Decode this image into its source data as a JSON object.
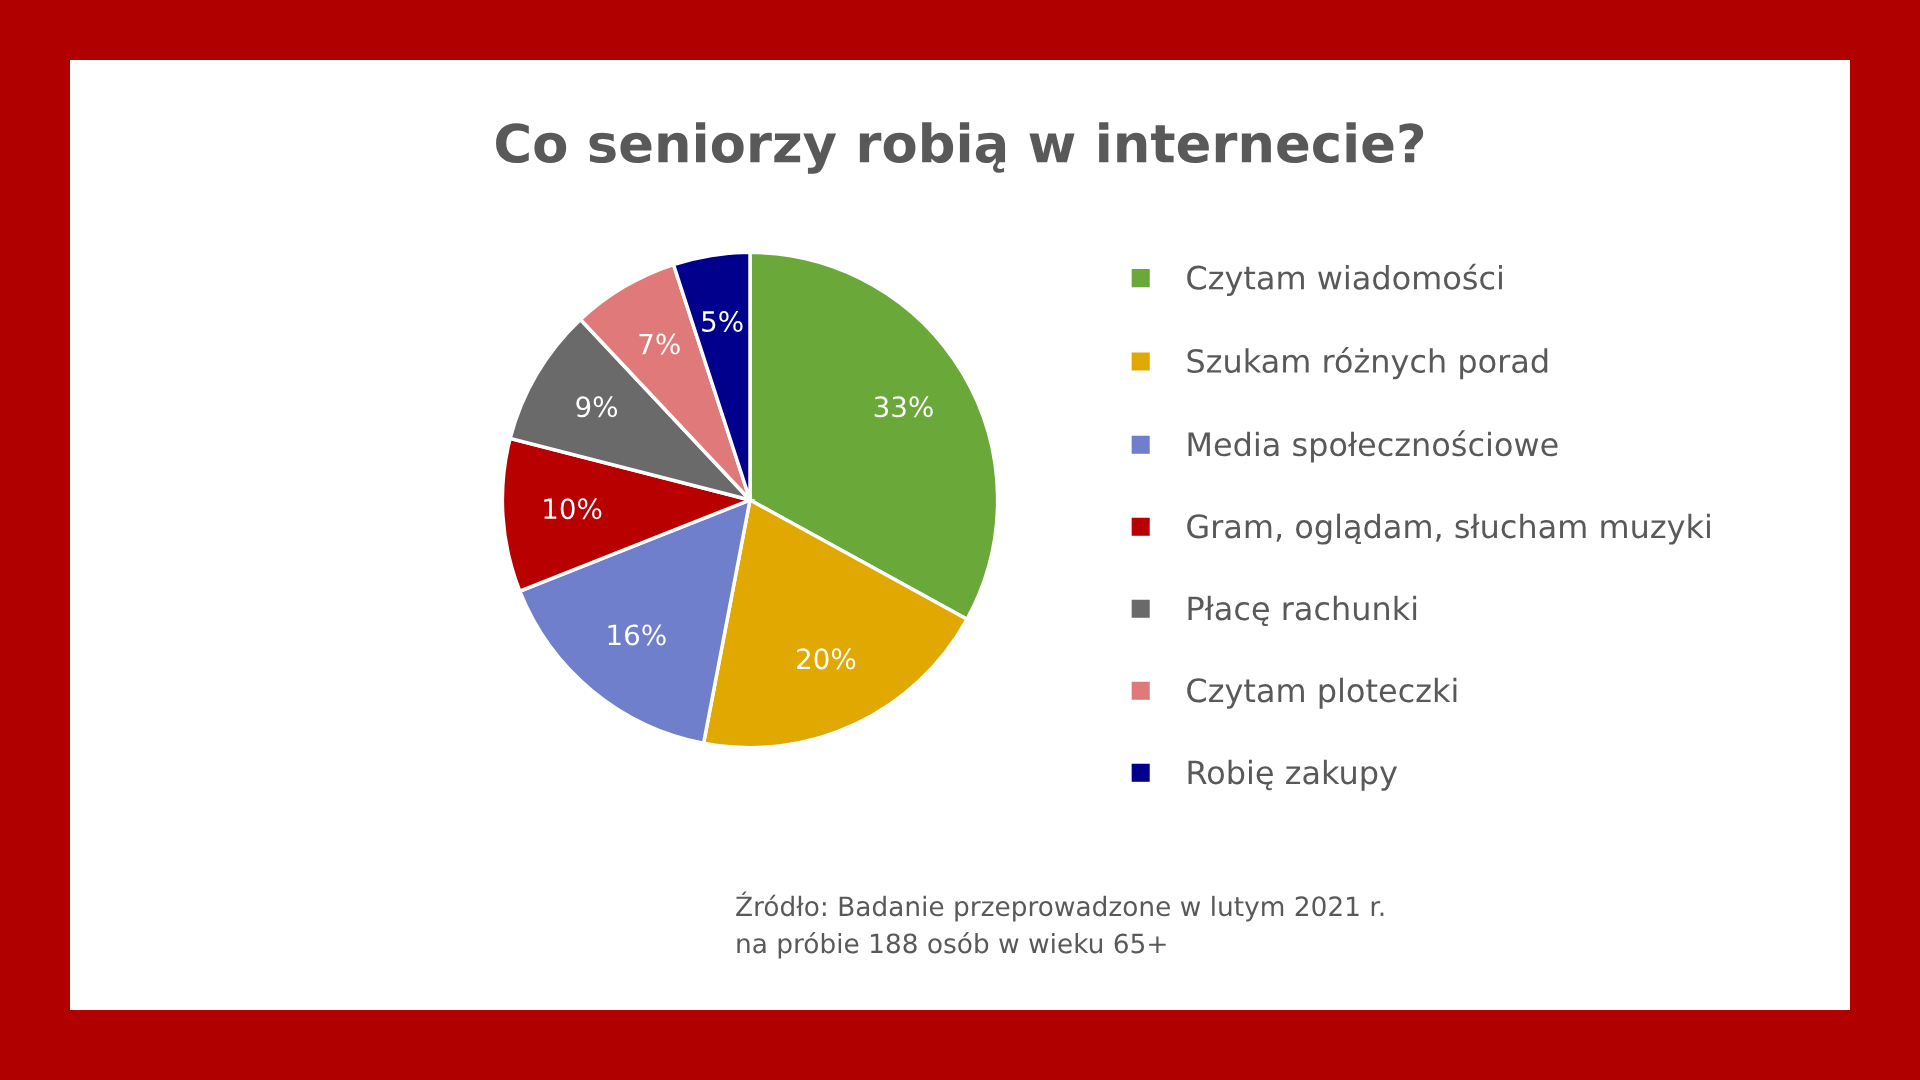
{
  "chart_data": {
    "type": "pie",
    "title": "Co seniorzy robią w internecie?",
    "categories": [
      "Czytam wiadomości",
      "Szukam różnych porad",
      "Media społecznościowe",
      "Gram, oglądam, słucham muzyki",
      "Płacę rachunki",
      "Czytam ploteczki",
      "Robię zakupy"
    ],
    "values": [
      33,
      20,
      16,
      10,
      9,
      7,
      5
    ],
    "colors": [
      "#6aa83a",
      "#e0a800",
      "#6f7fcc",
      "#b80000",
      "#6a6a6a",
      "#e07a7a",
      "#00008c"
    ],
    "value_labels": [
      "33%",
      "20%",
      "16%",
      "10%",
      "9%",
      "7%",
      "5%"
    ],
    "legend": "right",
    "annotations": [
      "Źródło: Badanie przeprowadzone w lutym 2021 r.\nna próbie 188 osób w wieku 65+"
    ]
  }
}
